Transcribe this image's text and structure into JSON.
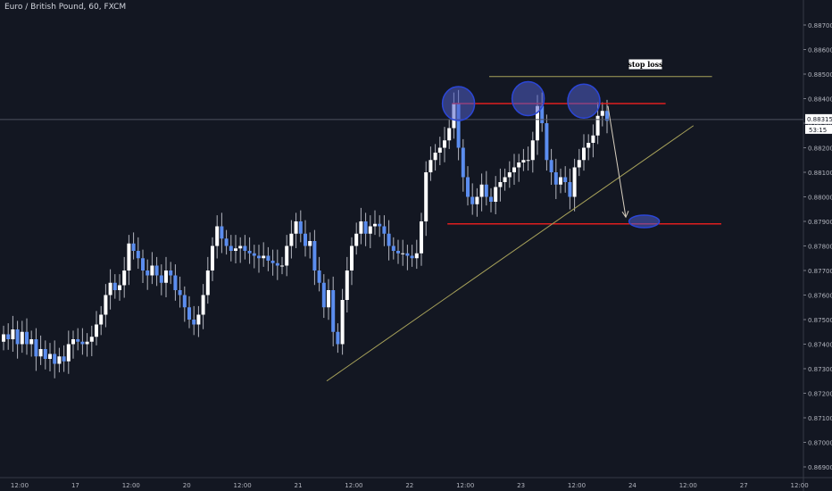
{
  "chart_data": {
    "type": "candlestick",
    "title": "Euro / British Pound, 60, FXCM",
    "symbol": "Euro / British Pound",
    "interval": "60",
    "source": "FXCM",
    "xlabel": "",
    "ylabel": "",
    "ylim": [
      0.86875,
      0.8875
    ],
    "yticks": [
      "0.88700",
      "0.88600",
      "0.88500",
      "0.88400",
      "0.88300",
      "0.88200",
      "0.88100",
      "0.88000",
      "0.87900",
      "0.87800",
      "0.87700",
      "0.87600",
      "0.87500",
      "0.87400",
      "0.87300",
      "0.87200",
      "0.87100",
      "0.87000",
      "0.86900"
    ],
    "xticks": [
      {
        "label": "12:00",
        "bar": 0
      },
      {
        "label": "17",
        "bar": 12
      },
      {
        "label": "12:00",
        "bar": 24
      },
      {
        "label": "20",
        "bar": 36
      },
      {
        "label": "12:00",
        "bar": 48
      },
      {
        "label": "21",
        "bar": 60
      },
      {
        "label": "12:00",
        "bar": 72
      },
      {
        "label": "22",
        "bar": 84
      },
      {
        "label": "12:00",
        "bar": 96
      },
      {
        "label": "23",
        "bar": 108
      },
      {
        "label": "12:00",
        "bar": 120
      },
      {
        "label": "24",
        "bar": 132
      },
      {
        "label": "12:00",
        "bar": 144
      },
      {
        "label": "27",
        "bar": 156
      },
      {
        "label": "12:00",
        "bar": 168
      }
    ],
    "last_price": "0.88315",
    "countdown": "53:15",
    "up_color": "#ffffff",
    "down_color": "#5b8def",
    "wick_color": "#b2b5be",
    "closes": [
      0.8744,
      0.8742,
      0.8746,
      0.874,
      0.8745,
      0.874,
      0.8742,
      0.8735,
      0.8738,
      0.8734,
      0.8736,
      0.8732,
      0.8735,
      0.8733,
      0.874,
      0.8742,
      0.8741,
      0.874,
      0.8741,
      0.8743,
      0.8748,
      0.8752,
      0.876,
      0.8765,
      0.8762,
      0.8764,
      0.877,
      0.8781,
      0.8778,
      0.8775,
      0.877,
      0.8768,
      0.8772,
      0.8768,
      0.8765,
      0.877,
      0.8768,
      0.8762,
      0.876,
      0.8755,
      0.875,
      0.8748,
      0.8752,
      0.876,
      0.877,
      0.878,
      0.8788,
      0.8783,
      0.878,
      0.8778,
      0.8779,
      0.878,
      0.8778,
      0.8777,
      0.8776,
      0.8775,
      0.8776,
      0.8774,
      0.8773,
      0.8772,
      0.8772,
      0.878,
      0.8785,
      0.879,
      0.8785,
      0.878,
      0.8782,
      0.877,
      0.8765,
      0.8755,
      0.8762,
      0.8745,
      0.874,
      0.8758,
      0.877,
      0.878,
      0.8785,
      0.879,
      0.8785,
      0.8788,
      0.8789,
      0.8788,
      0.8785,
      0.878,
      0.8778,
      0.8777,
      0.8777,
      0.8776,
      0.8775,
      0.8777,
      0.879,
      0.881,
      0.8815,
      0.8818,
      0.882,
      0.8823,
      0.8828,
      0.8838,
      0.882,
      0.8808,
      0.88,
      0.8797,
      0.88,
      0.8805,
      0.88,
      0.8798,
      0.8804,
      0.8806,
      0.8808,
      0.881,
      0.8812,
      0.8814,
      0.8815,
      0.8815,
      0.8823,
      0.8837,
      0.883,
      0.8815,
      0.881,
      0.8805,
      0.8808,
      0.8806,
      0.88,
      0.8812,
      0.8815,
      0.882,
      0.8822,
      0.8825,
      0.8833,
      0.8835,
      0.8831
    ],
    "annotations": {
      "stop_loss_label": "stop loss",
      "red_lines": [
        {
          "price": 0.8838,
          "from_bar": 97,
          "to_bar": 143
        },
        {
          "price": 0.8789,
          "from_bar": 96,
          "to_bar": 155
        }
      ],
      "yellow_line": {
        "price": 0.8849,
        "from_bar": 105,
        "to_bar": 153
      },
      "trendline": {
        "from": {
          "bar": 70,
          "price": 0.8725
        },
        "to": {
          "bar": 149,
          "price": 0.8829
        }
      },
      "projection_arrow": {
        "from": {
          "bar": 130,
          "price": 0.8837
        },
        "to": {
          "bar": 135,
          "price": 0.8791
        }
      },
      "circles": [
        {
          "bar": 98,
          "price": 0.8838
        },
        {
          "bar": 113,
          "price": 0.884
        },
        {
          "bar": 125,
          "price": 0.8839
        },
        {
          "bar": 138,
          "price": 0.879
        }
      ]
    }
  }
}
